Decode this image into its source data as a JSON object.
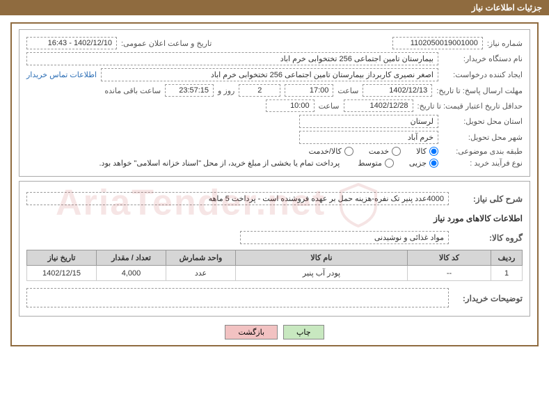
{
  "header": {
    "title": "جزئیات اطلاعات نیاز"
  },
  "fields": {
    "need_no_label": "شماره نیاز:",
    "need_no": "1102050019001000",
    "announce_label": "تاریخ و ساعت اعلان عمومی:",
    "announce_value": "1402/12/10 - 16:43",
    "buyer_label": "نام دستگاه خریدار:",
    "buyer_value": "بیمارستان تامین اجتماعی 256 تختخوابی خرم اباد",
    "requester_label": "ایجاد کننده درخواست:",
    "requester_value": "اصغر نصیری کاربرداز بیمارستان تامین اجتماعی 256 تختخوابی خرم اباد",
    "contact_link": "اطلاعات تماس خریدار",
    "deadline_label": "مهلت ارسال پاسخ: تا تاریخ:",
    "deadline_date": "1402/12/13",
    "time_word": "ساعت",
    "deadline_time": "17:00",
    "days_count": "2",
    "days_word": "روز و",
    "countdown": "23:57:15",
    "remain_word": "ساعت باقی مانده",
    "validity_label": "حداقل تاریخ اعتبار قیمت: تا تاریخ:",
    "validity_date": "1402/12/28",
    "validity_time": "10:00",
    "province_label": "استان محل تحویل:",
    "province_value": "لرستان",
    "city_label": "شهر محل تحویل:",
    "city_value": "خرم آباد",
    "class_label": "طبقه بندی موضوعی:",
    "class_kala": "کالا",
    "class_khedmat": "خدمت",
    "class_both": "کالا/خدمت",
    "buy_type_label": "نوع فرآیند خرید :",
    "buy_jozee": "جزیی",
    "buy_motavaset": "متوسط",
    "payment_note": "پرداخت تمام یا بخشی از مبلغ خرید، از محل \"اسناد خزانه اسلامی\" خواهد بود.",
    "desc_label": "شرح کلی نیاز:",
    "desc_value": "4000عدد پنیر تک نفره-هزینه حمل بر عهده فروشنده است - پرداخت 5 ماهه",
    "items_header": "اطلاعات کالاهای مورد نیاز",
    "group_label": "گروه کالا:",
    "group_value": "مواد غذائی و نوشیدنی",
    "buyer_notes_label": "توضیحات خریدار:"
  },
  "table": {
    "cols": {
      "row": "ردیف",
      "code": "کد کالا",
      "name": "نام کالا",
      "unit": "واحد شمارش",
      "qty": "تعداد / مقدار",
      "date": "تاریخ نیاز"
    },
    "rows": [
      {
        "row": "1",
        "code": "--",
        "name": "پودر آب پنیر",
        "unit": "عدد",
        "qty": "4,000",
        "date": "1402/12/15"
      }
    ]
  },
  "buttons": {
    "print": "چاپ",
    "back": "بازگشت"
  },
  "watermark": "AriaTender.net"
}
